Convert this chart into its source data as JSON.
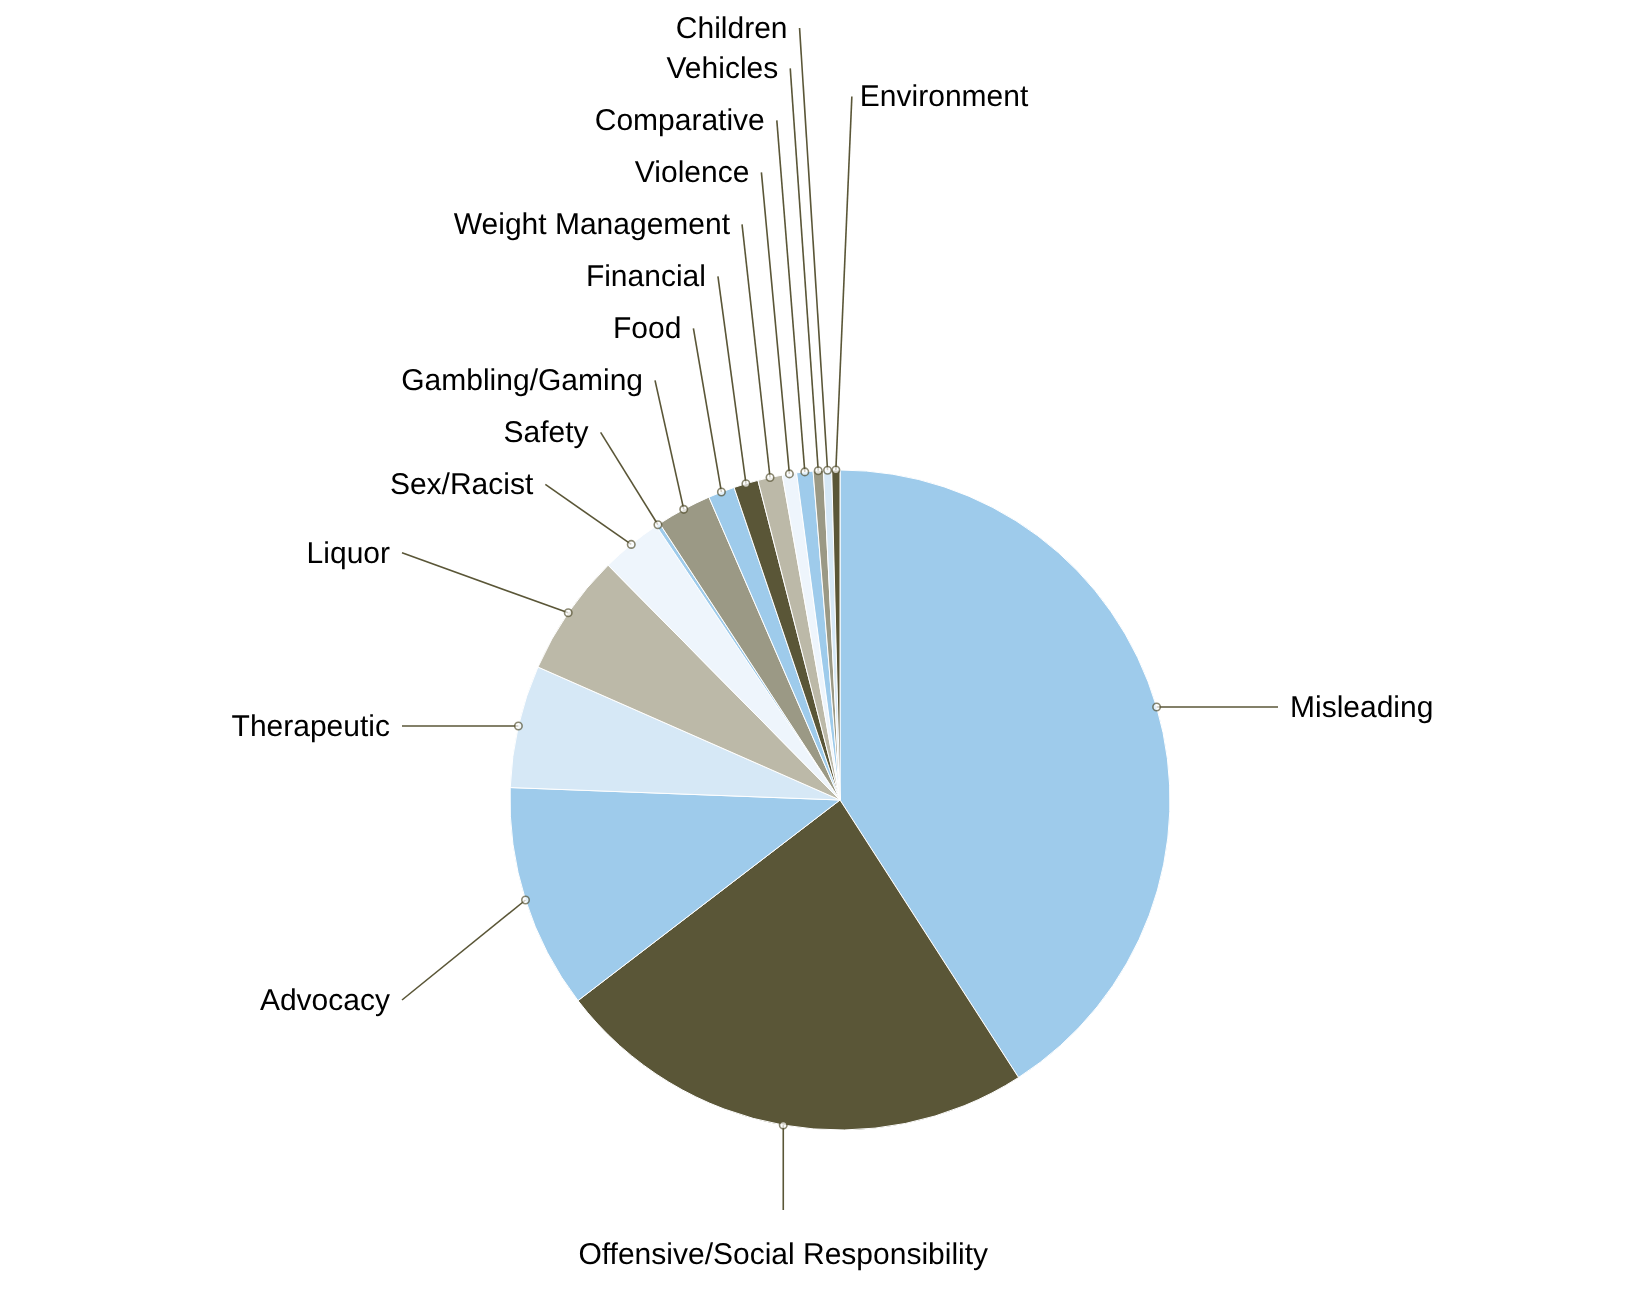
{
  "chart_data": {
    "type": "pie",
    "categories": [
      "Misleading",
      "Offensive/Social Responsibility",
      "Advocacy",
      "Therapeutic",
      "Liquor",
      "Sex/Racist",
      "Safety",
      "Gambling/Gaming",
      "Food",
      "Financial",
      "Weight Management",
      "Violence",
      "Comparative",
      "Vehicles",
      "Children",
      "Environment"
    ],
    "values": [
      40.9,
      23.7,
      11,
      6,
      6,
      3,
      0.2,
      2.7,
      1.3,
      1.2,
      1.2,
      0.7,
      0.8,
      0.5,
      0.4,
      0.4
    ],
    "colors": [
      "#9ecbeb",
      "#5a5637",
      "#9ecbeb",
      "#d6e8f6",
      "#bcb9a8",
      "#eef5fc",
      "#9ecbeb",
      "#9b9985",
      "#9ecbeb",
      "#5a5637",
      "#bcb9a8",
      "#eef5fc",
      "#9ecbeb",
      "#9b9985",
      "#d6e8f6",
      "#5a5637"
    ]
  }
}
